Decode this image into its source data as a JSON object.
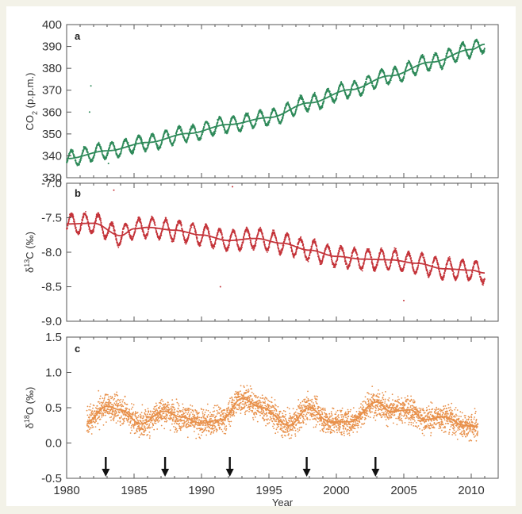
{
  "chart_data": [
    {
      "panel": "a",
      "type": "scatter",
      "ylabel": "CO2 (p.p.m.)",
      "ylabel_main": "CO",
      "ylabel_sub": "2",
      "ylabel_rest": " (p.p.m.)",
      "xlim": [
        1980,
        2012
      ],
      "ylim": [
        330,
        400
      ],
      "yticks": [
        330,
        340,
        350,
        360,
        370,
        380,
        390,
        400
      ],
      "color": "#2f8a5a",
      "trend": {
        "years": [
          1980,
          1983,
          1986,
          1989,
          1992,
          1995,
          1998,
          2001,
          2004,
          2007,
          2010,
          2011
        ],
        "values": [
          338.7,
          342.3,
          346.1,
          350.2,
          354.3,
          357.5,
          364.2,
          370.2,
          376.6,
          382.8,
          388.6,
          391.0
        ]
      },
      "seasonal_amplitude": 3.5,
      "outliers": [
        [
          1981.8,
          372.0
        ],
        [
          1981.7,
          360.0
        ],
        [
          1983.1,
          336.5
        ]
      ]
    },
    {
      "panel": "b",
      "type": "scatter",
      "ylabel": "δ13C (‰)",
      "ylabel_main": "δ",
      "ylabel_sup": "13",
      "ylabel_rest": "C (‰)",
      "xlim": [
        1980,
        2012
      ],
      "ylim": [
        -9.0,
        -7.0
      ],
      "yticks": [
        -9.0,
        -8.5,
        -8.0,
        -7.5,
        -7.0
      ],
      "ytick_labels": [
        "-9.0",
        "-8.5",
        "-8.0",
        "-7.5",
        "-7.0"
      ],
      "color": "#c4343a",
      "trend": {
        "years": [
          1980,
          1982,
          1984,
          1985,
          1986,
          1988,
          1990,
          1992,
          1994,
          1996,
          1998,
          2000,
          2002,
          2004,
          2006,
          2008,
          2010,
          2011
        ],
        "values": [
          -7.59,
          -7.58,
          -7.76,
          -7.66,
          -7.64,
          -7.68,
          -7.75,
          -7.83,
          -7.8,
          -7.87,
          -7.97,
          -8.06,
          -8.1,
          -8.11,
          -8.16,
          -8.24,
          -8.26,
          -8.3
        ]
      },
      "seasonal_amplitude": 0.14,
      "outliers": [
        [
          1983.5,
          -7.1
        ],
        [
          1991.4,
          -8.5
        ],
        [
          2005.0,
          -8.7
        ],
        [
          1992.3,
          -7.05
        ]
      ]
    },
    {
      "panel": "c",
      "type": "scatter",
      "ylabel": "δ18O (‰)",
      "ylabel_main": "δ",
      "ylabel_sup": "18",
      "ylabel_rest": "O (‰)",
      "xlabel": "Year",
      "xlim": [
        1980,
        2012
      ],
      "ylim": [
        -0.5,
        1.5
      ],
      "yticks": [
        -0.5,
        0.0,
        0.5,
        1.0,
        1.5
      ],
      "ytick_labels": [
        "-0.5",
        "0.0",
        "0.5",
        "1.0",
        "1.5"
      ],
      "xticks": [
        1980,
        1985,
        1990,
        1995,
        2000,
        2005,
        2010
      ],
      "xtick_labels": [
        "1980",
        "1985",
        "1990",
        "1995",
        "2000",
        "2005",
        "2010"
      ],
      "color": "#e8904a",
      "trend": {
        "years": [
          1981.5,
          1983,
          1984,
          1985.5,
          1987.2,
          1988.5,
          1990,
          1991.5,
          1993,
          1994.5,
          1996.5,
          1998,
          1999.5,
          2001,
          2003,
          2004,
          2005.5,
          2006.5,
          2008,
          2009.5,
          2010.5
        ],
        "values": [
          0.3,
          0.52,
          0.47,
          0.27,
          0.45,
          0.37,
          0.28,
          0.33,
          0.63,
          0.5,
          0.25,
          0.5,
          0.3,
          0.3,
          0.58,
          0.45,
          0.47,
          0.33,
          0.37,
          0.25,
          0.23
        ]
      },
      "noise": 0.16,
      "arrows_years": [
        1982.9,
        1987.3,
        1992.1,
        1997.8,
        2002.9
      ]
    }
  ]
}
